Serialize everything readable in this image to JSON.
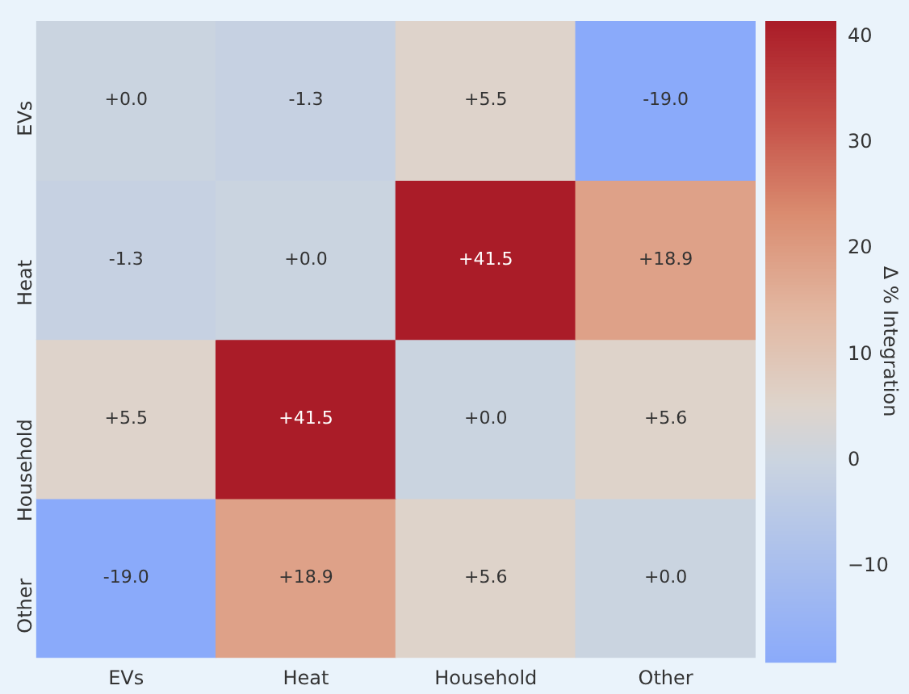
{
  "chart_data": {
    "type": "heatmap",
    "clabel": "Δ % Integration",
    "categories": [
      "EVs",
      "Heat",
      "Household",
      "Other"
    ],
    "y_categories": [
      "EVs",
      "Heat",
      "Household",
      "Other"
    ],
    "cells": [
      [
        0.0,
        -1.3,
        5.5,
        -19.0
      ],
      [
        -1.3,
        0.0,
        41.5,
        18.9
      ],
      [
        5.5,
        41.5,
        0.0,
        5.6
      ],
      [
        -19.0,
        18.9,
        5.6,
        0.0
      ]
    ],
    "cell_labels": [
      [
        "+0.0",
        "-1.3",
        "+5.5",
        "-19.0"
      ],
      [
        "-1.3",
        "+0.0",
        "+41.5",
        "+18.9"
      ],
      [
        "+5.5",
        "+41.5",
        "+0.0",
        "+5.6"
      ],
      [
        "-19.0",
        "+18.9",
        "+5.6",
        "+0.0"
      ]
    ],
    "clim": [
      -19,
      41.5
    ],
    "cticks": [
      -10,
      0,
      10,
      20,
      30,
      40
    ]
  }
}
